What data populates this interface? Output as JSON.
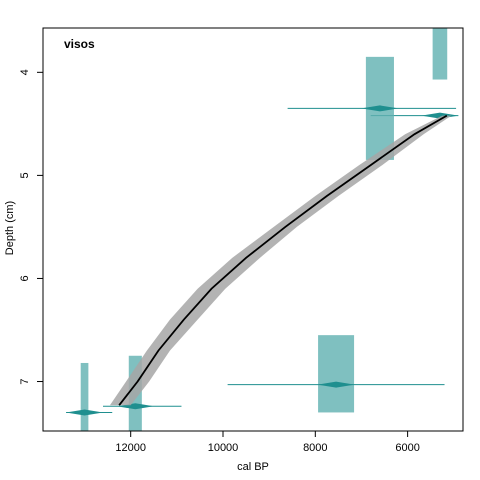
{
  "chart_data": {
    "type": "line",
    "title": "visos",
    "xlabel": "cal BP",
    "ylabel": "Depth (cm)",
    "x_reversed": true,
    "y_reversed": true,
    "xlim": [
      13900,
      4800
    ],
    "ylim": [
      7.48,
      3.57
    ],
    "x_ticks": [
      12000,
      10000,
      8000,
      6000
    ],
    "y_ticks": [
      4,
      5,
      6,
      7
    ],
    "colors": {
      "date_fill": "#5fb0b0",
      "date_line": "#1f8f8f",
      "envelope": "#a6a6a6",
      "median": "#000000"
    },
    "age_model": {
      "depth": [
        4.42,
        4.6,
        4.9,
        5.2,
        5.5,
        5.8,
        6.1,
        6.4,
        6.7,
        7.0,
        7.23
      ],
      "median_age": [
        5150,
        5850,
        6800,
        7750,
        8650,
        9500,
        10250,
        10850,
        11400,
        11850,
        12250
      ],
      "min_age": [
        5050,
        5650,
        6550,
        7500,
        8400,
        9200,
        9950,
        10550,
        11150,
        11600,
        12000
      ],
      "max_age": [
        5250,
        6050,
        7050,
        8000,
        8900,
        9800,
        10550,
        11150,
        11650,
        12100,
        12450
      ]
    },
    "dates": [
      {
        "age": 5300,
        "depth": 4.42,
        "age_min": 6800,
        "age_max": 4900,
        "prob_depth_top": 3.57,
        "prob_depth_bottom": 4.07
      },
      {
        "age": 6600,
        "depth": 4.35,
        "age_min": 8600,
        "age_max": 4950,
        "prob_depth_top": 3.85,
        "prob_depth_bottom": 4.85
      },
      {
        "age": 7550,
        "depth": 7.03,
        "age_min": 9900,
        "age_max": 5200,
        "prob_depth_top": 6.55,
        "prob_depth_bottom": 7.3
      },
      {
        "age": 11900,
        "depth": 7.24,
        "age_min": 12600,
        "age_max": 10900,
        "prob_depth_top": 6.75,
        "prob_depth_bottom": 7.48
      },
      {
        "age": 13000,
        "depth": 7.3,
        "age_min": 13400,
        "age_max": 12400,
        "prob_depth_top": 6.82,
        "prob_depth_bottom": 7.48
      }
    ]
  }
}
